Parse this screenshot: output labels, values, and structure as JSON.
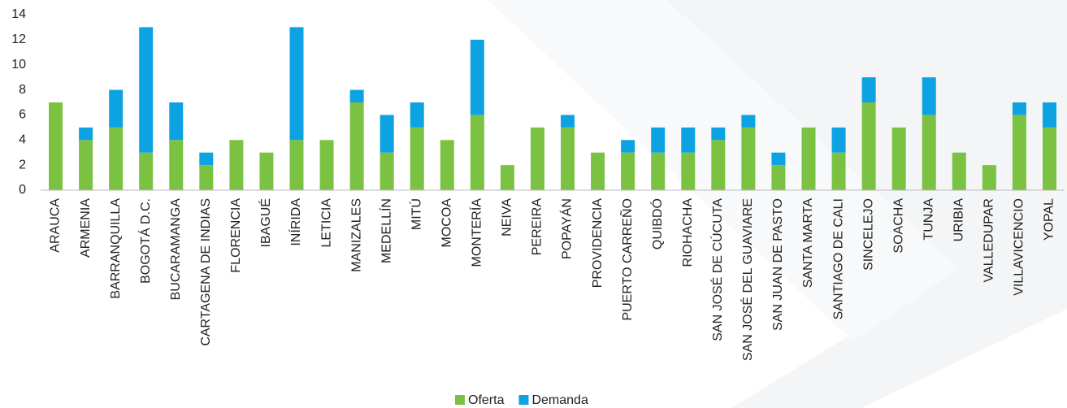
{
  "chart_data": {
    "type": "stacked_bar",
    "categories": [
      "ARAUCA",
      "ARMENIA",
      "BARRANQUILLA",
      "BOGOTÁ D.C.",
      "BUCARAMANGA",
      "CARTAGENA DE INDIAS",
      "FLORENCIA",
      "IBAGUÉ",
      "INÍRIDA",
      "LETICIA",
      "MANIZALES",
      "MEDELLÍN",
      "MITÚ",
      "MOCOA",
      "MONTERÍA",
      "NEIVA",
      "PEREIRA",
      "POPAYÁN",
      "PROVIDENCIA",
      "PUERTO CARREÑO",
      "QUIBDÓ",
      "RIOHACHA",
      "SAN JOSÉ DE CÚCUTA",
      "SAN JOSÉ DEL GUAVIARE",
      "SAN JUAN DE PASTO",
      "SANTA MARTA",
      "SANTIAGO DE CALI",
      "SINCELEJO",
      "SOACHA",
      "TUNJA",
      "URIBIA",
      "VALLEDUPAR",
      "VILLAVICENCIO",
      "YOPAL"
    ],
    "series": [
      {
        "name": "Oferta",
        "color": "#7cc242",
        "values": [
          7,
          4,
          5,
          3,
          4,
          2,
          4,
          3,
          4,
          4,
          7,
          3,
          5,
          4,
          6,
          2,
          5,
          5,
          3,
          3,
          3,
          3,
          4,
          5,
          2,
          5,
          3,
          7,
          5,
          6,
          3,
          2,
          6,
          5
        ]
      },
      {
        "name": "Demanda",
        "color": "#0da3e2",
        "values": [
          0,
          1,
          3,
          10,
          3,
          1,
          0,
          0,
          9,
          0,
          1,
          3,
          2,
          0,
          6,
          0,
          0,
          1,
          0,
          1,
          2,
          2,
          1,
          1,
          1,
          0,
          2,
          2,
          0,
          3,
          0,
          0,
          1,
          2
        ]
      }
    ],
    "ylim": [
      0,
      14
    ],
    "yticks": [
      0,
      2,
      4,
      6,
      8,
      10,
      12,
      14
    ],
    "grid": false,
    "legend": "bottom"
  }
}
